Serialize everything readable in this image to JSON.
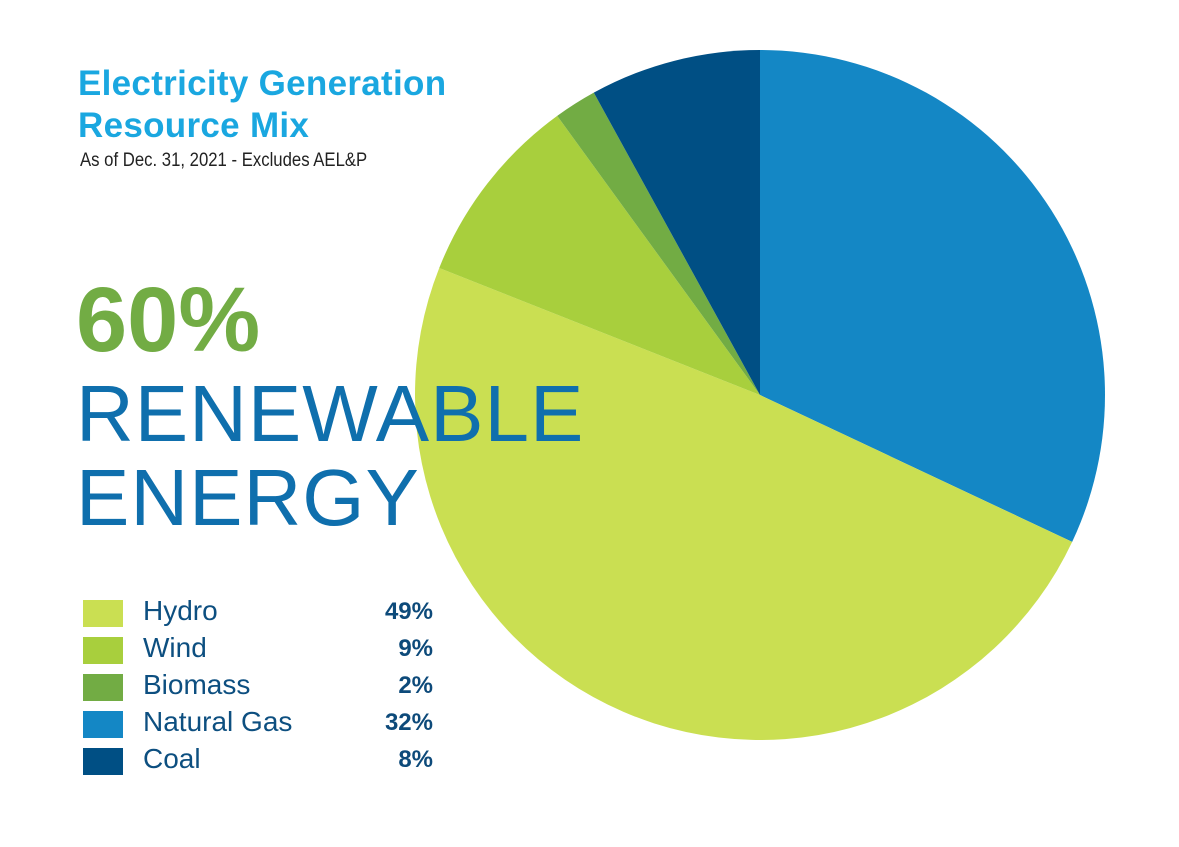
{
  "title_line1": "Electricity Generation",
  "title_line2": "Resource Mix",
  "subtitle": "As of Dec. 31, 2021 - Excludes AEL&P",
  "headline_percent": "60%",
  "headline_line1": "RENEWABLE",
  "headline_line2": "ENERGY",
  "colors": {
    "title": "#1AA7E0",
    "headline_percent": "#72AC44",
    "headline_text": "#0F6FAD",
    "legend_text": "#0D4F80"
  },
  "chart_data": {
    "type": "pie",
    "start_angle": "12 o'clock",
    "direction": "clockwise",
    "legend_position": "bottom-left",
    "slices": [
      {
        "label": "Hydro",
        "value": 49,
        "display": "49%",
        "color": "#CADF52"
      },
      {
        "label": "Wind",
        "value": 9,
        "display": "9%",
        "color": "#A8CF3D"
      },
      {
        "label": "Biomass",
        "value": 2,
        "display": "2%",
        "color": "#72AC44"
      },
      {
        "label": "Natural Gas",
        "value": 32,
        "display": "32%",
        "color": "#1487C5"
      },
      {
        "label": "Coal",
        "value": 8,
        "display": "8%",
        "color": "#004F84"
      }
    ],
    "draw_order": [
      "Natural Gas",
      "Hydro",
      "Wind",
      "Biomass",
      "Coal"
    ]
  }
}
